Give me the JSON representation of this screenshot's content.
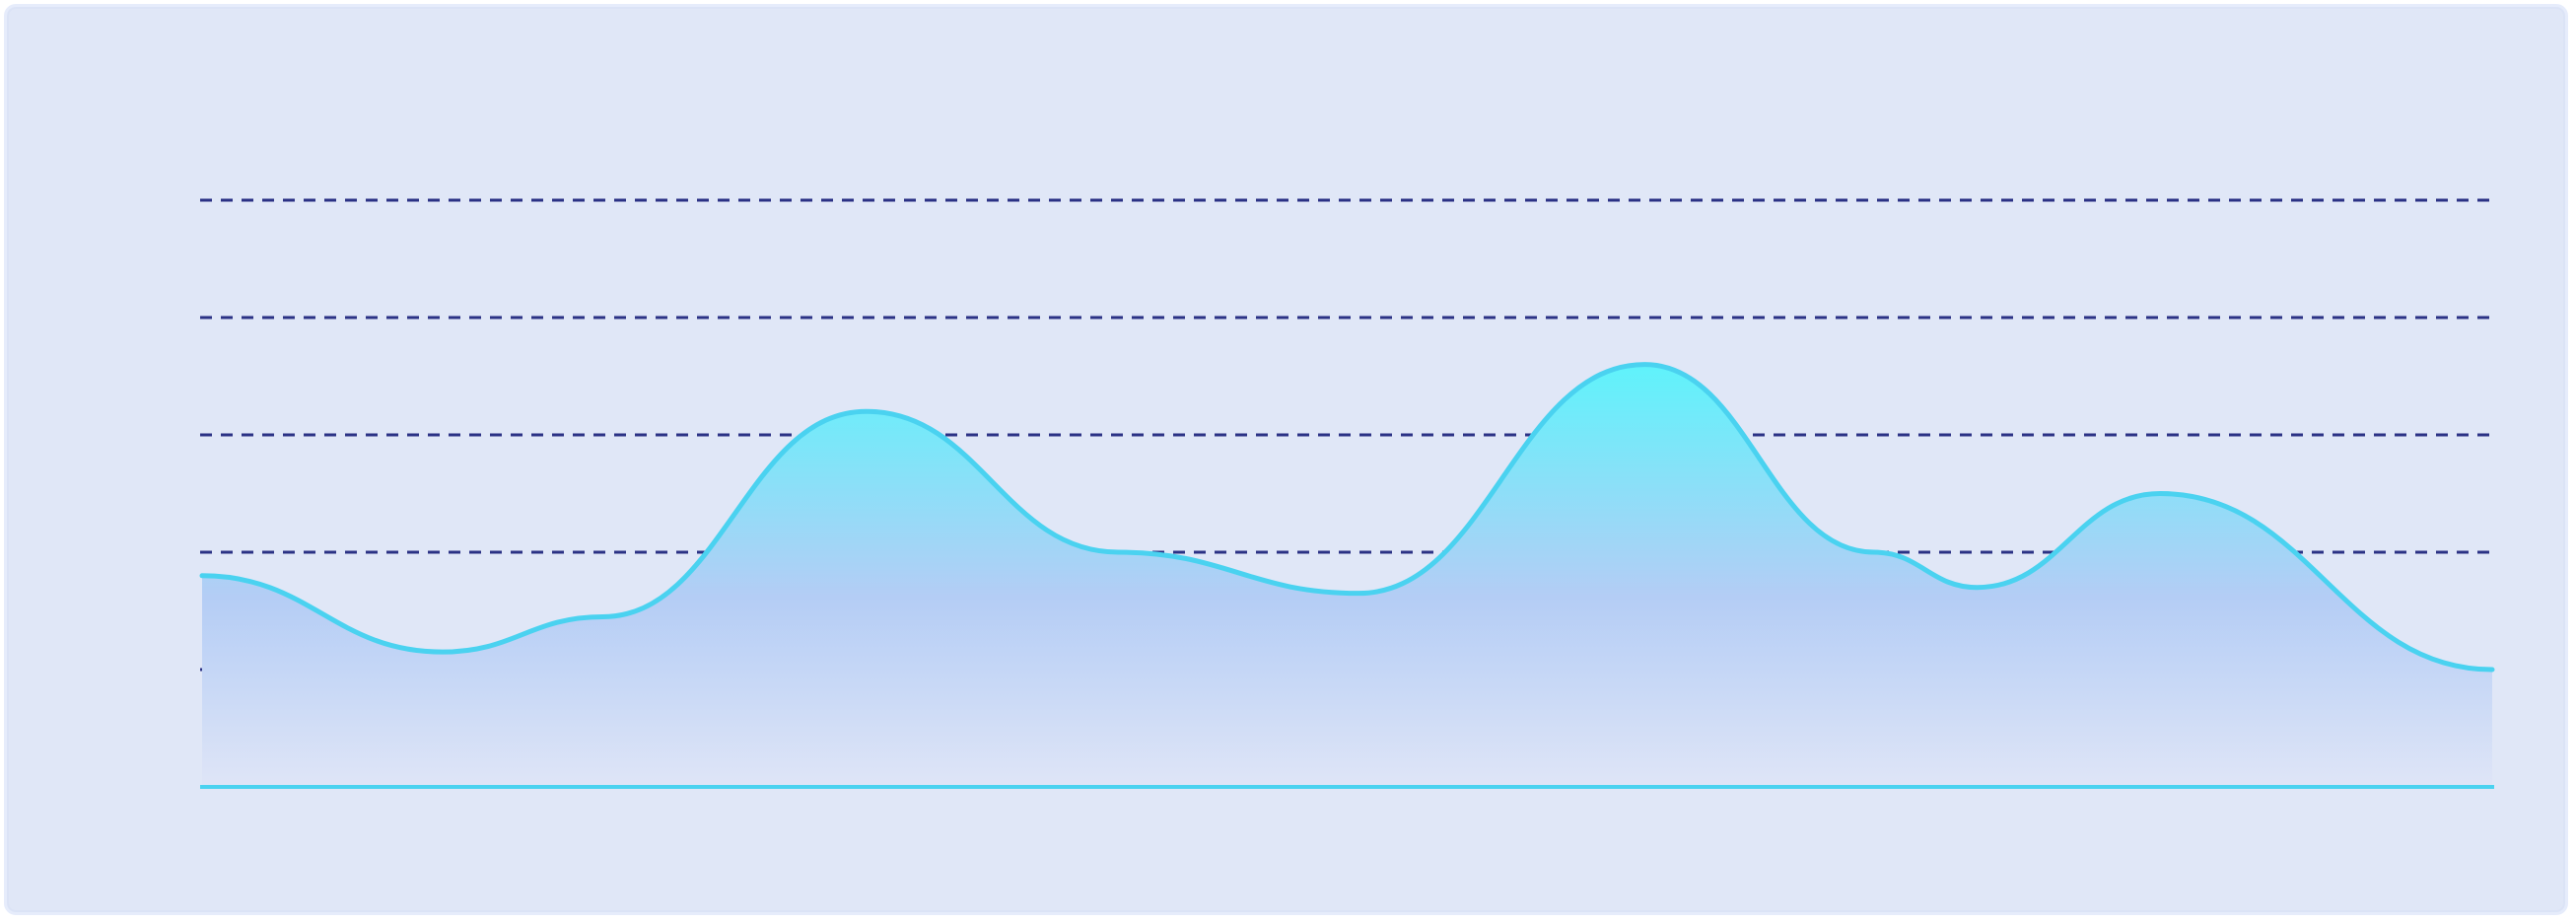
{
  "colors": {
    "panel_bg": "#e0e7f7",
    "line": "#4ad2f0",
    "fill_top": "#5ff3fb",
    "fill_mid": "#b4cdf5",
    "fill_bottom": "#dfe5f7",
    "grid": "#2b3285"
  },
  "chart_data": {
    "type": "area",
    "title": "",
    "xlabel": "",
    "ylabel": "",
    "grid": true,
    "grid_style": "dashed",
    "legend": "none",
    "ylim": [
      0,
      100
    ],
    "gridlines": [
      20,
      40,
      60,
      80,
      100
    ],
    "smooth": true,
    "series": [
      {
        "x": [
          0,
          10.5,
          17.5,
          29,
          40,
          50.5,
          63,
          73,
          77.5,
          85.5,
          100
        ],
        "values": [
          36,
          23,
          29,
          64,
          40,
          33,
          72,
          40,
          34,
          50,
          20
        ]
      }
    ]
  }
}
